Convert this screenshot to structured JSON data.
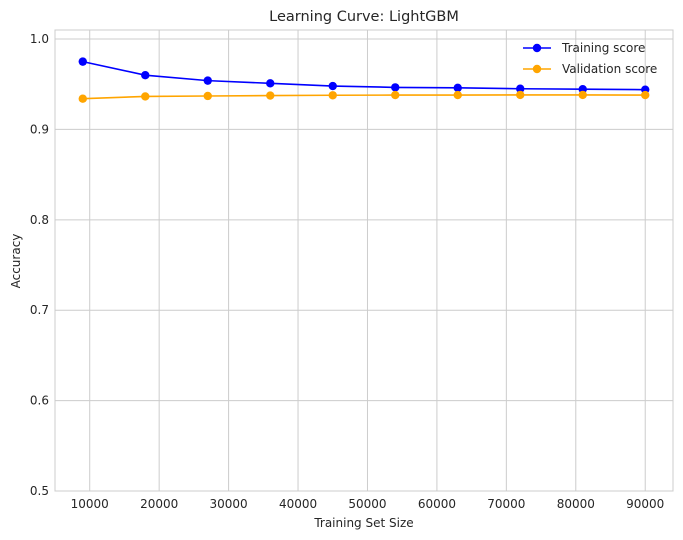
{
  "chart_data": {
    "type": "line",
    "title": "Learning Curve: LightGBM",
    "xlabel": "Training Set Size",
    "ylabel": "Accuracy",
    "xlim": [
      5000,
      94000
    ],
    "ylim": [
      0.5,
      1.01
    ],
    "xticks": [
      10000,
      20000,
      30000,
      40000,
      50000,
      60000,
      70000,
      80000,
      90000
    ],
    "yticks": [
      0.5,
      0.6,
      0.7,
      0.8,
      0.9,
      1.0
    ],
    "grid": true,
    "legend_position": "top-right",
    "x": [
      9000,
      18000,
      27000,
      36000,
      45000,
      54000,
      63000,
      72000,
      81000,
      90000
    ],
    "series": [
      {
        "name": "Training score",
        "color": "#0000ff",
        "values": [
          0.975,
          0.96,
          0.954,
          0.951,
          0.948,
          0.9465,
          0.946,
          0.945,
          0.9445,
          0.944
        ]
      },
      {
        "name": "Validation score",
        "color": "#ffa500",
        "values": [
          0.934,
          0.9365,
          0.937,
          0.9375,
          0.9378,
          0.938,
          0.938,
          0.9382,
          0.9382,
          0.938
        ]
      }
    ]
  }
}
